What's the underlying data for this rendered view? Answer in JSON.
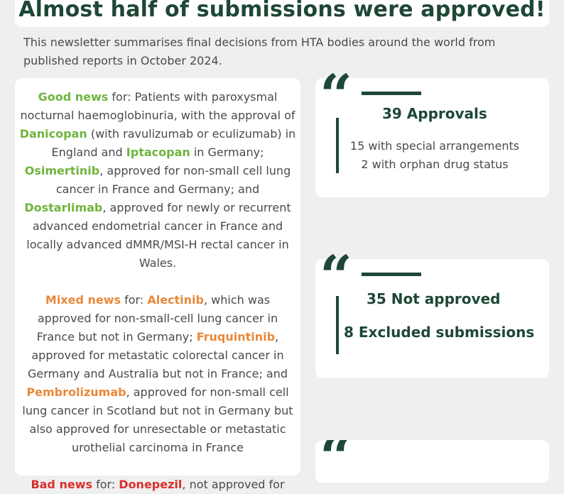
{
  "title": "Almost half of submissions were approved!",
  "intro": "This newsletter summarises final decisions from HTA bodies around the world from published reports in October 2024.",
  "good": {
    "label": "Good news",
    "t1": " for: Patients with paroxysmal nocturnal haemoglobinuria, with the approval of ",
    "d1": "Danicopan",
    "t2": " (with ravulizumab or eculizumab) in England and ",
    "d2": "Iptacopan",
    "t3": " in Germany; ",
    "d3": "Osimertinib",
    "t4": ", approved for non-small cell lung cancer in France and Germany; and ",
    "d4": "Dostarlimab",
    "t5": ", approved for newly or recurrent advanced endometrial cancer in France and locally advanced dMMR/MSI-H rectal cancer in Wales."
  },
  "mixed": {
    "label": "Mixed news",
    "t1": " for: ",
    "d1": "Alectinib",
    "t2": ", which was approved for non-small-cell lung cancer in France but not in Germany; ",
    "d2": "Fruquintinib",
    "t3": ", approved for metastatic colorectal cancer in Germany and Australia but not in France; and ",
    "d3": "Pembrolizumab",
    "t4": ", approved for non-small cell lung cancer in Scotland but not in Germany but also approved for unresectable or metastatic urothelial carcinoma in France"
  },
  "bad": {
    "label": "Bad news",
    "t1": " for:  ",
    "d1": "Donepezil",
    "t2": ", not approved for"
  },
  "stats": {
    "approvals": {
      "heading": "39 Approvals",
      "line1": "15 with special arrangements",
      "line2": "2 with orphan drug status"
    },
    "not_approved": {
      "heading": "35 Not approved",
      "excluded": "8 Excluded submissions"
    },
    "quote_glyph": "“"
  },
  "colors": {
    "dark_green": "#1e4735",
    "good": "#6fb43f",
    "mixed": "#e8893a",
    "bad": "#d9302c"
  }
}
